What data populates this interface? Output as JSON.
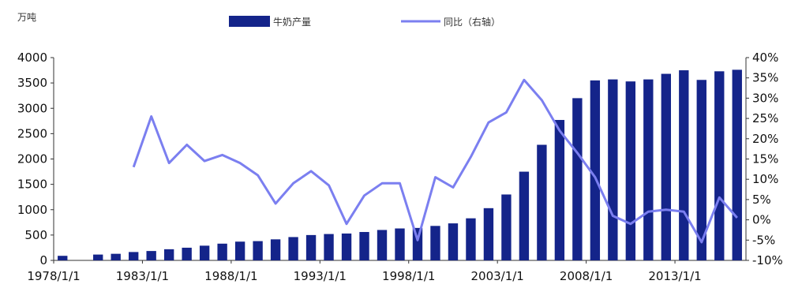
{
  "chart_data": {
    "type": "bar",
    "y_unit": "万吨",
    "x_ticks": [
      "1978/1/1",
      "1983/1/1",
      "1988/1/1",
      "1993/1/1",
      "1998/1/1",
      "2003/1/1",
      "2008/1/1",
      "2013/1/1"
    ],
    "y_left_ticks": [
      "0",
      "500",
      "1000",
      "1500",
      "2000",
      "2500",
      "3000",
      "3500",
      "4000"
    ],
    "y_right_ticks": [
      "-10%",
      "-5%",
      "0%",
      "5%",
      "10%",
      "15%",
      "20%",
      "25%",
      "30%",
      "35%",
      "40%"
    ],
    "ylim_left": [
      0,
      4000
    ],
    "ylim_right": [
      -10,
      40
    ],
    "categories": [
      "1978",
      "1979",
      "1980",
      "1981",
      "1982",
      "1983",
      "1984",
      "1985",
      "1986",
      "1987",
      "1988",
      "1989",
      "1990",
      "1991",
      "1992",
      "1993",
      "1994",
      "1995",
      "1996",
      "1997",
      "1998",
      "1999",
      "2000",
      "2001",
      "2002",
      "2003",
      "2004",
      "2005",
      "2006",
      "2007",
      "2008",
      "2009",
      "2010",
      "2011",
      "2012",
      "2013",
      "2014",
      "2015",
      "2016"
    ],
    "series": [
      {
        "name": "牛奶产量",
        "type": "bar",
        "axis": "left",
        "color": "#14248a",
        "values": [
          90,
          null,
          115,
          130,
          165,
          185,
          220,
          250,
          290,
          330,
          370,
          380,
          415,
          460,
          500,
          520,
          530,
          560,
          600,
          630,
          640,
          680,
          730,
          830,
          1030,
          1300,
          1750,
          2280,
          2770,
          3200,
          3550,
          3570,
          3530,
          3570,
          3680,
          3750,
          3560,
          3730,
          3760
        ]
      },
      {
        "name": "同比（右轴）",
        "type": "line",
        "axis": "right",
        "color": "#7b7ff0",
        "values": [
          null,
          null,
          null,
          null,
          13,
          25.5,
          14,
          18.5,
          14.5,
          16,
          14,
          11,
          4,
          9,
          12,
          8.5,
          -1,
          6,
          9,
          9,
          -5,
          10.5,
          8,
          15.5,
          24,
          26.5,
          34.5,
          29.5,
          22,
          16.5,
          10.5,
          1,
          -1,
          2,
          2.5,
          2,
          -5.5,
          5.5,
          0.5
        ]
      }
    ]
  }
}
